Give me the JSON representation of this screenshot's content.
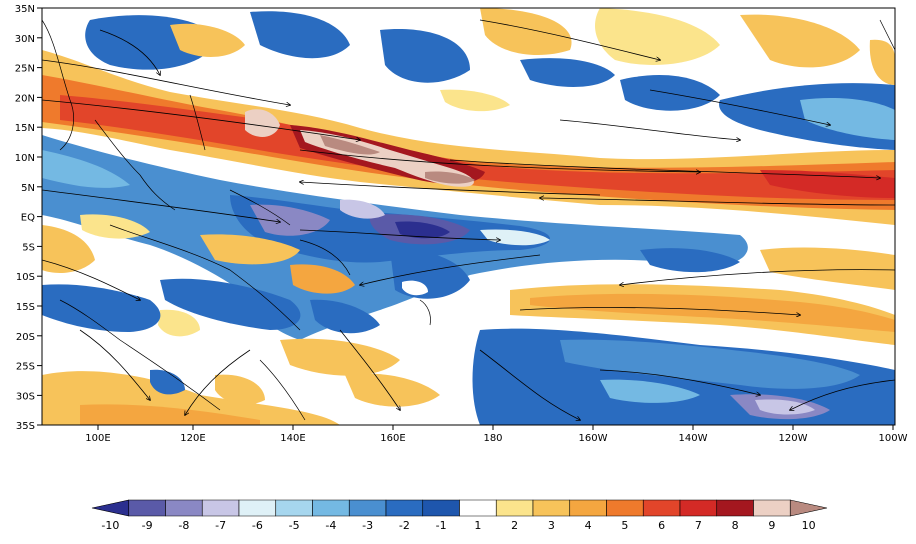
{
  "map": {
    "lat_labels": [
      "35N",
      "30N",
      "25N",
      "20N",
      "15N",
      "10N",
      "5N",
      "EQ",
      "5S",
      "10S",
      "15S",
      "20S",
      "25S",
      "30S",
      "35S"
    ],
    "lon_labels": [
      "100E",
      "120E",
      "140E",
      "160E",
      "180",
      "160W",
      "140W",
      "120W",
      "100W"
    ]
  },
  "colorbar": {
    "levels": [
      "-10",
      "-9",
      "-8",
      "-7",
      "-6",
      "-5",
      "-4",
      "-3",
      "-2",
      "-1",
      "1",
      "2",
      "3",
      "4",
      "5",
      "6",
      "7",
      "8",
      "9",
      "10"
    ],
    "colors": [
      "#2b2f8f",
      "#5a5aa8",
      "#8a88c4",
      "#c8c6e6",
      "#dff1f7",
      "#a6d6ee",
      "#74b9e3",
      "#4a8fd0",
      "#2a6cc0",
      "#1e56ad",
      "#ffffff",
      "#fbe48c",
      "#f7c35a",
      "#f4a640",
      "#ef7a2c",
      "#e2452a",
      "#d42a26",
      "#a4171f",
      "#ecd0c4",
      "#b98a80"
    ]
  },
  "legend_colors": {
    "positive": "#e2452a",
    "negative": "#2a6cc0",
    "peak_positive": "#b98a80",
    "peak_negative": "#2b2f8f"
  }
}
